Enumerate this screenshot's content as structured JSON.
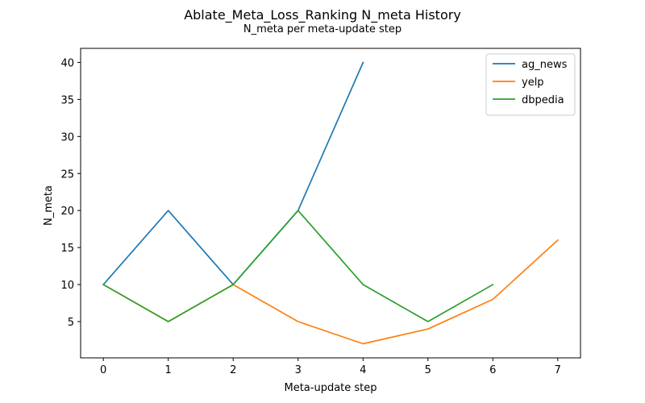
{
  "chart_data": {
    "type": "line",
    "title": "Ablate_Meta_Loss_Ranking N_meta History",
    "subtitle": "N_meta per meta-update step",
    "xlabel": "Meta-update step",
    "ylabel": "N_meta",
    "xlim": [
      -0.35,
      7.35
    ],
    "ylim": [
      0.1,
      41.9
    ],
    "xticks": [
      0,
      1,
      2,
      3,
      4,
      5,
      6,
      7
    ],
    "yticks": [
      5,
      10,
      15,
      20,
      25,
      30,
      35,
      40
    ],
    "grid": false,
    "legend_position": "top-right",
    "series": [
      {
        "name": "ag_news",
        "color": "#1f77b4",
        "x": [
          0,
          1,
          2,
          3,
          4
        ],
        "values": [
          10,
          20,
          10,
          20,
          40
        ]
      },
      {
        "name": "yelp",
        "color": "#ff7f0e",
        "x": [
          0,
          1,
          2,
          3,
          4,
          5,
          6,
          7
        ],
        "values": [
          10,
          5,
          10,
          5,
          2,
          4,
          8,
          16
        ]
      },
      {
        "name": "dbpedia",
        "color": "#2ca02c",
        "x": [
          0,
          1,
          2,
          3,
          4,
          5,
          6
        ],
        "values": [
          10,
          5,
          10,
          20,
          10,
          5,
          10
        ]
      }
    ]
  }
}
